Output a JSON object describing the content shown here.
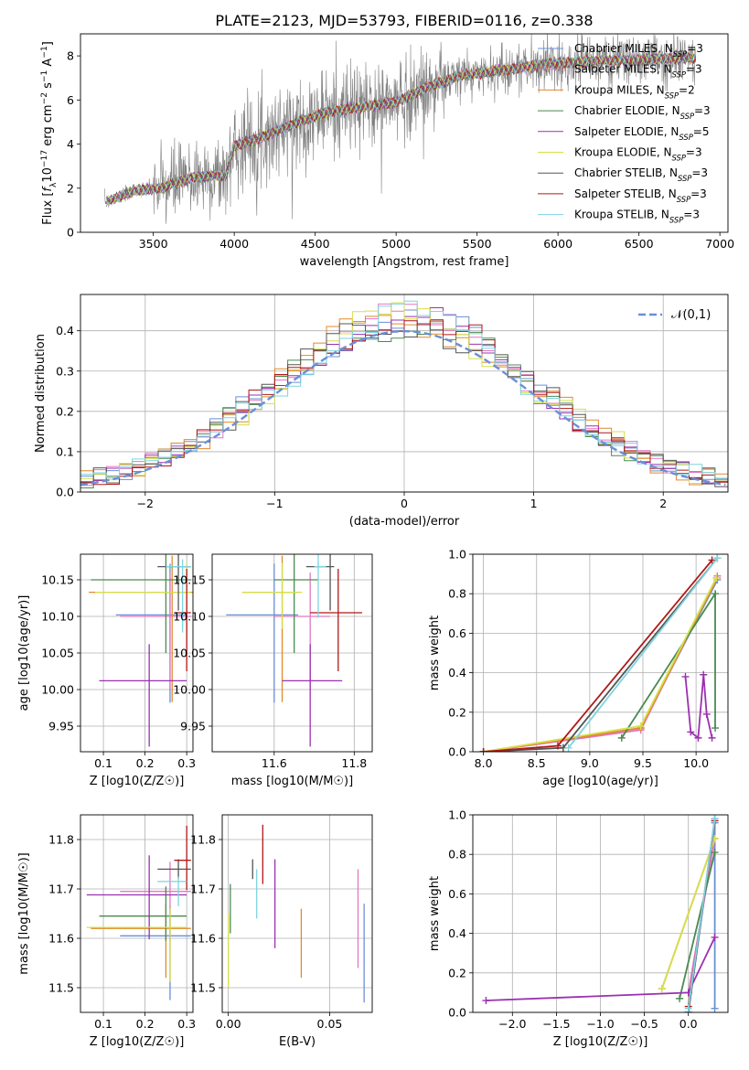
{
  "figure": {
    "title": "PLATE=2123, MJD=53793, FIBERID=0116, z=0.338"
  },
  "series_legend": [
    {
      "label": "Chabrier MILES, N$_{SSP}$=3",
      "color": "#6a8fd6"
    },
    {
      "label": "Salpeter MILES, N$_{SSP}$=3",
      "color": "#e377c2"
    },
    {
      "label": "Kroupa MILES, N$_{SSP}$=2",
      "color": "#e08a2c"
    },
    {
      "label": "Chabrier ELODIE, N$_{SSP}$=3",
      "color": "#4a8a50"
    },
    {
      "label": "Salpeter ELODIE, N$_{SSP}$=5",
      "color": "#9b30b0"
    },
    {
      "label": "Kroupa ELODIE, N$_{SSP}$=3",
      "color": "#d4e04a"
    },
    {
      "label": "Chabrier STELIB, N$_{SSP}$=3",
      "color": "#555555"
    },
    {
      "label": "Salpeter STELIB, N$_{SSP}$=3",
      "color": "#b01818"
    },
    {
      "label": "Kroupa STELIB, N$_{SSP}$=3",
      "color": "#7fd3e0"
    }
  ],
  "chart_data": [
    {
      "id": "spectrum",
      "type": "line",
      "xlabel": "wavelength [Angstrom, rest frame]",
      "ylabel": "Flux [f_λ 10^-17 erg cm^-2 s^-1 A^-1]",
      "xlim": [
        3050,
        7050
      ],
      "ylim": [
        0,
        9
      ],
      "xticks": [
        3500,
        4000,
        4500,
        5000,
        5500,
        6000,
        6500,
        7000
      ],
      "yticks": [
        0,
        2,
        4,
        6,
        8
      ],
      "grid": false,
      "legend": "top-right",
      "data_color": "#808080",
      "data_range": [
        3200,
        6850
      ],
      "model_continuum": [
        [
          3210,
          1.4
        ],
        [
          3400,
          1.9
        ],
        [
          3550,
          2.0
        ],
        [
          3750,
          2.5
        ],
        [
          3950,
          2.6
        ],
        [
          4000,
          3.9
        ],
        [
          4200,
          4.4
        ],
        [
          4400,
          5.0
        ],
        [
          4600,
          5.5
        ],
        [
          4800,
          5.7
        ],
        [
          5000,
          5.9
        ],
        [
          5200,
          6.6
        ],
        [
          5400,
          7.1
        ],
        [
          5600,
          7.3
        ],
        [
          5800,
          7.5
        ],
        [
          6000,
          7.65
        ],
        [
          6200,
          7.75
        ],
        [
          6400,
          7.8
        ],
        [
          6600,
          7.85
        ],
        [
          6850,
          7.9
        ]
      ]
    },
    {
      "id": "residuals",
      "type": "histogram",
      "xlabel": "(data-model)/error",
      "ylabel": "Normed distribution",
      "xlim": [
        -2.5,
        2.5
      ],
      "ylim": [
        0,
        0.49
      ],
      "xticks": [
        -2,
        -1,
        0,
        1,
        2
      ],
      "yticks": [
        0.0,
        0.1,
        0.2,
        0.3,
        0.4
      ],
      "grid": true,
      "legend": "top-right",
      "reference_curve": {
        "label": "𝒩(0,1)",
        "color": "#6a8fd6",
        "style": "dashed"
      },
      "bin_width": 0.1
    },
    {
      "id": "age_vs_Z",
      "type": "errorbar",
      "xlabel": "Z [log10(Z/Z☉)]",
      "ylabel": "age [log10(age/yr)]",
      "xlim": [
        0.045,
        0.315
      ],
      "ylim": [
        9.915,
        10.185
      ],
      "xticks": [
        0.1,
        0.2,
        0.3
      ],
      "yticks": [
        9.95,
        10.0,
        10.05,
        10.1,
        10.15
      ],
      "grid": true,
      "points": [
        {
          "x": 0.26,
          "y": 10.102,
          "xerr": [
            0.13,
            0.04
          ],
          "yerr": [
            0.12,
            0.07
          ],
          "c": 0
        },
        {
          "x": 0.26,
          "y": 10.1,
          "xerr": [
            0.12,
            0.05
          ],
          "yerr": [
            0.1,
            0.06
          ],
          "c": 1
        },
        {
          "x": 0.265,
          "y": 10.133,
          "xerr": [
            0.2,
            0.05
          ],
          "yerr": [
            0.15,
            0.05
          ],
          "c": 2
        },
        {
          "x": 0.25,
          "y": 10.15,
          "xerr": [
            0.18,
            0.06
          ],
          "yerr": [
            0.1,
            0.05
          ],
          "c": 3
        },
        {
          "x": 0.21,
          "y": 10.012,
          "xerr": [
            0.12,
            0.09
          ],
          "yerr": [
            0.09,
            0.05
          ],
          "c": 4
        },
        {
          "x": 0.3,
          "y": 10.133,
          "xerr": [
            0.22,
            0.01
          ],
          "yerr": [
            0.05,
            0.04
          ],
          "c": 5
        },
        {
          "x": 0.28,
          "y": 10.168,
          "xerr": [
            0.05,
            0.03
          ],
          "yerr": [
            0.06,
            0.02
          ],
          "c": 6
        },
        {
          "x": 0.3,
          "y": 10.105,
          "xerr": [
            0.03,
            0.01
          ],
          "yerr": [
            0.08,
            0.06
          ],
          "c": 7
        },
        {
          "x": 0.29,
          "y": 10.168,
          "xerr": [
            0.04,
            0.02
          ],
          "yerr": [
            0.09,
            0.01
          ],
          "c": 8
        }
      ]
    },
    {
      "id": "age_vs_mass",
      "type": "errorbar",
      "xlabel": "mass [log10(M/M☉)]",
      "ylabel": "",
      "xlim": [
        11.445,
        11.845
      ],
      "ylim": [
        9.915,
        10.185
      ],
      "xticks": [
        11.6,
        11.8
      ],
      "yticks": [
        9.95,
        10.0,
        10.05,
        10.1,
        10.15
      ],
      "grid": true,
      "points": [
        {
          "x": 11.6,
          "y": 10.102,
          "xerr": [
            0.12,
            0.06
          ],
          "yerr": [
            0.12,
            0.07
          ],
          "c": 0
        },
        {
          "x": 11.69,
          "y": 10.1,
          "xerr": [
            0.09,
            0.05
          ],
          "yerr": [
            0.1,
            0.06
          ],
          "c": 1
        },
        {
          "x": 11.62,
          "y": 10.133,
          "xerr": [
            0.1,
            0.04
          ],
          "yerr": [
            0.15,
            0.05
          ],
          "c": 2
        },
        {
          "x": 11.65,
          "y": 10.15,
          "xerr": [
            0.05,
            0.06
          ],
          "yerr": [
            0.1,
            0.05
          ],
          "c": 3
        },
        {
          "x": 11.69,
          "y": 10.012,
          "xerr": [
            0.07,
            0.08
          ],
          "yerr": [
            0.09,
            0.05
          ],
          "c": 4
        },
        {
          "x": 11.62,
          "y": 10.133,
          "xerr": [
            0.1,
            0.05
          ],
          "yerr": [
            0.05,
            0.04
          ],
          "c": 5
        },
        {
          "x": 11.74,
          "y": 10.168,
          "xerr": [
            0.06,
            0.01
          ],
          "yerr": [
            0.06,
            0.02
          ],
          "c": 6
        },
        {
          "x": 11.76,
          "y": 10.105,
          "xerr": [
            0.07,
            0.06
          ],
          "yerr": [
            0.08,
            0.06
          ],
          "c": 7
        },
        {
          "x": 11.71,
          "y": 10.168,
          "xerr": [
            0.01,
            0.02
          ],
          "yerr": [
            0.07,
            0.02
          ],
          "c": 8
        }
      ]
    },
    {
      "id": "mass_weight_vs_age",
      "type": "line",
      "xlabel": "age [log10(age/yr)]",
      "ylabel": "mass weight",
      "xlim": [
        7.9,
        10.3
      ],
      "ylim": [
        0,
        1
      ],
      "xticks": [
        8.0,
        8.5,
        9.0,
        9.5,
        10.0
      ],
      "yticks": [
        0.0,
        0.2,
        0.4,
        0.6,
        0.8,
        1.0
      ],
      "grid": true,
      "series": [
        {
          "c": 0,
          "points": [
            [
              8.0,
              0.0
            ],
            [
              9.48,
              0.12
            ],
            [
              10.2,
              0.87
            ]
          ]
        },
        {
          "c": 1,
          "points": [
            [
              8.0,
              0.0
            ],
            [
              9.48,
              0.11
            ],
            [
              10.2,
              0.89
            ]
          ]
        },
        {
          "c": 2,
          "points": [
            [
              8.0,
              0.0
            ],
            [
              9.48,
              0.12
            ],
            [
              10.2,
              0.88
            ]
          ]
        },
        {
          "c": 3,
          "points": [
            [
              9.3,
              0.07
            ],
            [
              10.18,
              0.8
            ],
            [
              10.18,
              0.12
            ]
          ]
        },
        {
          "c": 4,
          "points": [
            [
              9.9,
              0.38
            ],
            [
              9.95,
              0.1
            ],
            [
              10.02,
              0.07
            ],
            [
              10.07,
              0.39
            ],
            [
              10.1,
              0.19
            ],
            [
              10.15,
              0.07
            ]
          ]
        },
        {
          "c": 5,
          "points": [
            [
              8.0,
              0.0
            ],
            [
              9.48,
              0.13
            ],
            [
              10.19,
              0.88
            ]
          ]
        },
        {
          "c": 6,
          "points": [
            [
              8.0,
              0.0
            ],
            [
              8.75,
              0.02
            ],
            [
              10.2,
              0.98
            ]
          ]
        },
        {
          "c": 7,
          "points": [
            [
              8.0,
              0.0
            ],
            [
              8.7,
              0.03
            ],
            [
              10.15,
              0.97
            ]
          ]
        },
        {
          "c": 8,
          "points": [
            [
              8.8,
              0.02
            ],
            [
              10.2,
              0.98
            ]
          ]
        }
      ]
    },
    {
      "id": "mass_vs_Z",
      "type": "errorbar",
      "xlabel": "Z [log10(Z/Z☉)]",
      "ylabel": "mass [log10(M/M☉)]",
      "xlim": [
        0.045,
        0.315
      ],
      "ylim": [
        11.45,
        11.85
      ],
      "xticks": [
        0.1,
        0.2,
        0.3
      ],
      "yticks": [
        11.5,
        11.6,
        11.7,
        11.8
      ],
      "grid": true,
      "points": [
        {
          "x": 0.26,
          "y": 11.605,
          "xerr": [
            0.12,
            0.05
          ],
          "yerr": [
            0.13,
            0.06
          ],
          "c": 0
        },
        {
          "x": 0.26,
          "y": 11.695,
          "xerr": [
            0.12,
            0.05
          ],
          "yerr": [
            0.1,
            0.06
          ],
          "c": 1
        },
        {
          "x": 0.25,
          "y": 11.62,
          "xerr": [
            0.18,
            0.06
          ],
          "yerr": [
            0.1,
            0.05
          ],
          "c": 2
        },
        {
          "x": 0.25,
          "y": 11.645,
          "xerr": [
            0.16,
            0.05
          ],
          "yerr": [
            0.05,
            0.06
          ],
          "c": 3
        },
        {
          "x": 0.21,
          "y": 11.688,
          "xerr": [
            0.15,
            0.09
          ],
          "yerr": [
            0.09,
            0.08
          ],
          "c": 4
        },
        {
          "x": 0.26,
          "y": 11.622,
          "xerr": [
            0.2,
            0.04
          ],
          "yerr": [
            0.11,
            0.04
          ],
          "c": 5
        },
        {
          "x": 0.28,
          "y": 11.74,
          "xerr": [
            0.05,
            0.03
          ],
          "yerr": [
            0.02,
            0.02
          ],
          "c": 6
        },
        {
          "x": 0.3,
          "y": 11.758,
          "xerr": [
            0.03,
            0.01
          ],
          "yerr": [
            0.06,
            0.07
          ],
          "c": 7
        },
        {
          "x": 0.28,
          "y": 11.715,
          "xerr": [
            0.05,
            0.02
          ],
          "yerr": [
            0.05,
            0.01
          ],
          "c": 8
        }
      ]
    },
    {
      "id": "mass_vs_EBV",
      "type": "errorbar",
      "xlabel": "E(B-V)",
      "ylabel": "",
      "xlim": [
        -0.003,
        0.071
      ],
      "ylim": [
        11.45,
        11.85
      ],
      "xticks": [
        0.0,
        0.05
      ],
      "yticks": [
        11.5,
        11.6,
        11.7,
        11.8
      ],
      "grid": true,
      "points": [
        {
          "x": 0.067,
          "y": 11.57,
          "xerr": [
            0,
            0
          ],
          "yerr": [
            0.1,
            0.1
          ],
          "c": 0
        },
        {
          "x": 0.064,
          "y": 11.64,
          "xerr": [
            0,
            0
          ],
          "yerr": [
            0.1,
            0.1
          ],
          "c": 1
        },
        {
          "x": 0.036,
          "y": 11.59,
          "xerr": [
            0,
            0
          ],
          "yerr": [
            0.07,
            0.07
          ],
          "c": 2
        },
        {
          "x": 0.001,
          "y": 11.66,
          "xerr": [
            0,
            0
          ],
          "yerr": [
            0.05,
            0.05
          ],
          "c": 3
        },
        {
          "x": 0.023,
          "y": 11.67,
          "xerr": [
            0,
            0
          ],
          "yerr": [
            0.09,
            0.09
          ],
          "c": 4
        },
        {
          "x": 0.0,
          "y": 11.575,
          "xerr": [
            0,
            0
          ],
          "yerr": [
            0.075,
            0.075
          ],
          "c": 5
        },
        {
          "x": 0.012,
          "y": 11.74,
          "xerr": [
            0,
            0
          ],
          "yerr": [
            0.02,
            0.02
          ],
          "c": 6
        },
        {
          "x": 0.017,
          "y": 11.77,
          "xerr": [
            0,
            0
          ],
          "yerr": [
            0.06,
            0.06
          ],
          "c": 7
        },
        {
          "x": 0.014,
          "y": 11.69,
          "xerr": [
            0,
            0
          ],
          "yerr": [
            0.05,
            0.05
          ],
          "c": 8
        }
      ]
    },
    {
      "id": "mass_weight_vs_Z",
      "type": "line",
      "xlabel": "Z [log10(Z/Z☉)]",
      "ylabel": "mass weight",
      "xlim": [
        -2.45,
        0.45
      ],
      "ylim": [
        0,
        1
      ],
      "xticks": [
        -2.0,
        -1.5,
        -1.0,
        -0.5,
        0.0
      ],
      "yticks": [
        0.0,
        0.2,
        0.4,
        0.6,
        0.8,
        1.0
      ],
      "grid": true,
      "series": [
        {
          "c": 0,
          "points": [
            [
              0.0,
              0.0
            ],
            [
              0.3,
              0.96
            ],
            [
              0.3,
              0.02
            ]
          ]
        },
        {
          "c": 1,
          "points": [
            [
              0.0,
              0.1
            ],
            [
              0.3,
              0.88
            ]
          ]
        },
        {
          "c": 2,
          "points": [
            [
              -0.3,
              0.12
            ],
            [
              0.3,
              0.88
            ]
          ]
        },
        {
          "c": 3,
          "points": [
            [
              -0.1,
              0.07
            ],
            [
              0.3,
              0.81
            ]
          ]
        },
        {
          "c": 4,
          "points": [
            [
              -2.3,
              0.06
            ],
            [
              0.0,
              0.1
            ],
            [
              0.3,
              0.38
            ]
          ]
        },
        {
          "c": 5,
          "points": [
            [
              -0.3,
              0.12
            ],
            [
              0.3,
              0.88
            ]
          ]
        },
        {
          "c": 6,
          "points": [
            [
              0.0,
              0.0
            ],
            [
              0.3,
              0.98
            ]
          ]
        },
        {
          "c": 7,
          "points": [
            [
              0.0,
              0.03
            ],
            [
              0.3,
              0.97
            ]
          ]
        },
        {
          "c": 8,
          "points": [
            [
              0.0,
              0.02
            ],
            [
              0.3,
              0.98
            ]
          ]
        }
      ]
    }
  ]
}
